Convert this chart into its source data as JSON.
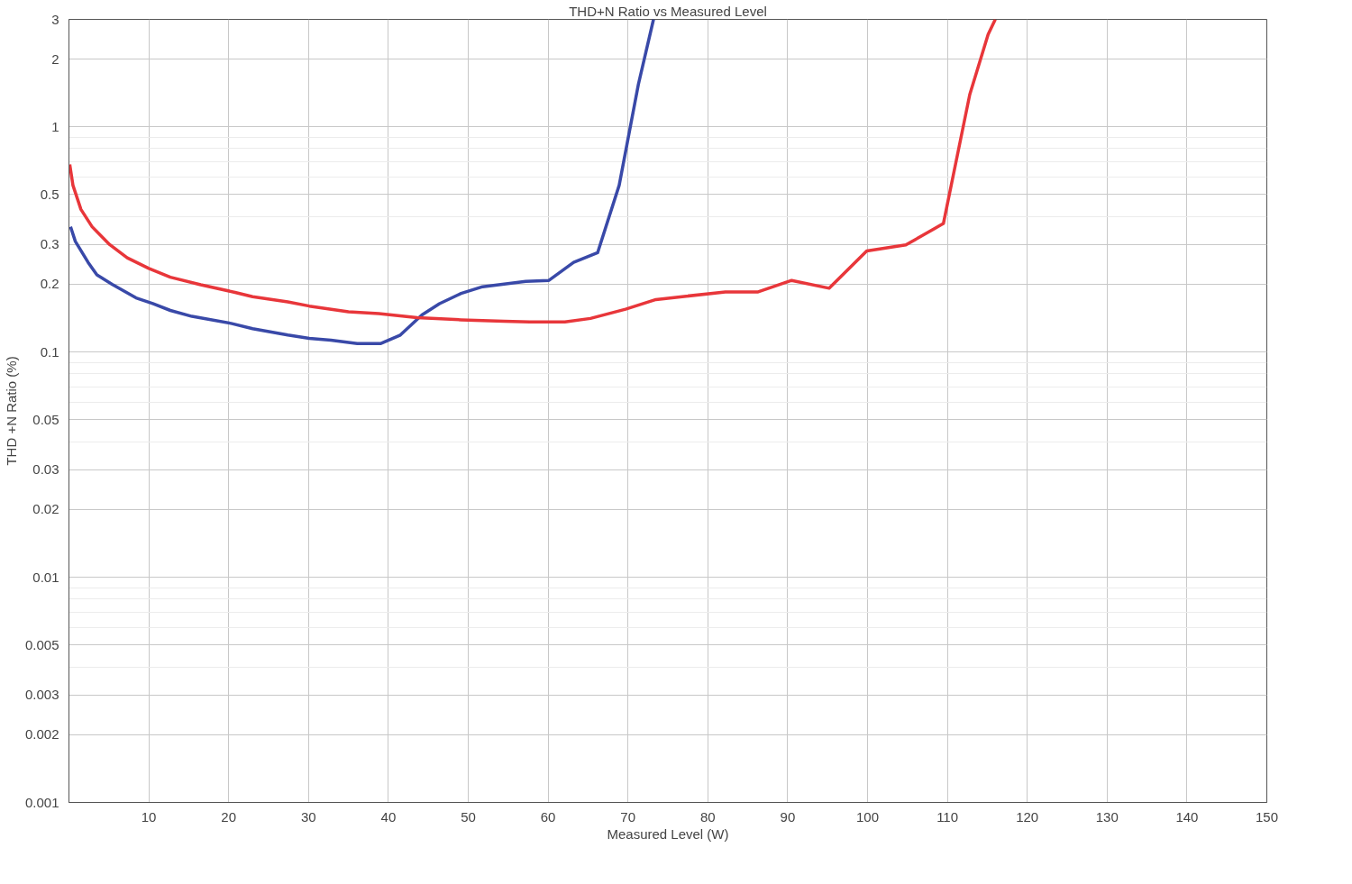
{
  "chart_data": {
    "type": "line",
    "title": "THD+N Ratio vs Measured Level",
    "xlabel": "Measured Level (W)",
    "ylabel": "THD +N Ratio (%)",
    "log": "y",
    "grid": true,
    "line_style": "solid",
    "marker": "none",
    "xlim": [
      0,
      150
    ],
    "xticks": [
      10,
      20,
      30,
      40,
      50,
      60,
      70,
      80,
      90,
      100,
      110,
      120,
      130,
      140,
      150
    ],
    "ylim": [
      0.001,
      3
    ],
    "yticks": [
      0.001,
      0.002,
      0.003,
      0.005,
      0.01,
      0.02,
      0.03,
      0.05,
      0.1,
      0.2,
      0.3,
      0.5,
      1,
      2,
      3
    ],
    "series": [
      {
        "color": "#3949a8",
        "x": [
          0.2,
          0.8,
          2.4,
          3.5,
          5.4,
          8.4,
          10.5,
          12.7,
          15.4,
          20.3,
          23,
          27.4,
          30.1,
          32.8,
          36.1,
          39,
          41.5,
          44.2,
          46.4,
          49.1,
          51.8,
          57.2,
          60.1,
          63.2,
          66.2,
          68.9,
          71.3,
          73.2
        ],
        "values": [
          0.36,
          0.31,
          0.25,
          0.22,
          0.2,
          0.174,
          0.164,
          0.153,
          0.144,
          0.134,
          0.127,
          0.119,
          0.115,
          0.113,
          0.109,
          0.109,
          0.119,
          0.146,
          0.164,
          0.182,
          0.195,
          0.206,
          0.208,
          0.25,
          0.276,
          0.55,
          1.54,
          3
        ]
      },
      {
        "color": "#e8363a",
        "x": [
          0.1,
          0.5,
          1.5,
          2.9,
          5.1,
          7.3,
          10,
          12.7,
          16.5,
          20.8,
          23,
          27.4,
          30.1,
          35,
          38.8,
          43.6,
          49.1,
          54.5,
          57.7,
          62.1,
          65.3,
          69.7,
          73.5,
          77.3,
          82.2,
          86.3,
          90.5,
          95.2,
          99.9,
          104.8,
          109.5,
          112.8,
          115.1,
          116
        ],
        "values": [
          0.68,
          0.55,
          0.43,
          0.36,
          0.3,
          0.262,
          0.235,
          0.215,
          0.199,
          0.184,
          0.176,
          0.167,
          0.16,
          0.151,
          0.148,
          0.142,
          0.139,
          0.137,
          0.136,
          0.136,
          0.141,
          0.155,
          0.171,
          0.177,
          0.185,
          0.185,
          0.208,
          0.192,
          0.281,
          0.299,
          0.372,
          1.39,
          2.57,
          3
        ]
      }
    ]
  }
}
